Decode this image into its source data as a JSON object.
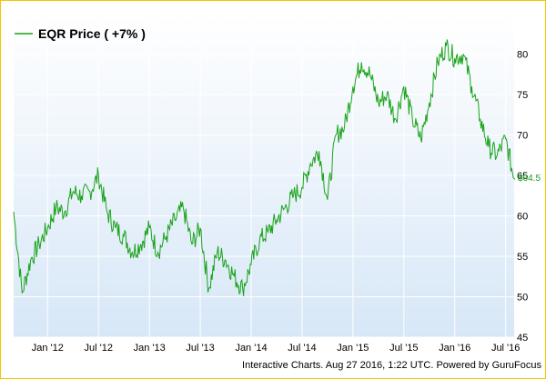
{
  "legend": {
    "label": "EQR Price ( +7% )"
  },
  "current_price_label": "$64.5",
  "footer": {
    "text": "Interactive Charts. Aug 27 2016, 1:22 UTC. Powered by GuruFocus"
  },
  "colors": {
    "line": "#1aa31a",
    "border": "#f2c500",
    "bg_top": "#ffffff",
    "bg_bottom": "#d7e7f7",
    "grid": "#ffffff"
  },
  "chart_data": {
    "type": "line",
    "title": "",
    "xlabel": "",
    "ylabel": "",
    "series": [
      {
        "name": "EQR Price ( +7% )"
      }
    ],
    "x_ticks": [
      "Jan '12",
      "Jul '12",
      "Jan '13",
      "Jul '13",
      "Jan '14",
      "Jul '14",
      "Jan '15",
      "Jul '15",
      "Jan '16",
      "Jul '16"
    ],
    "y_ticks": [
      45,
      50,
      55,
      60,
      65,
      70,
      75,
      80
    ],
    "ylim": [
      45,
      85
    ],
    "xlim": [
      "2011-09",
      "2016-08"
    ],
    "y_axis_side": "right",
    "grid": true,
    "legend_position": "top-left",
    "x": [
      "2011-09",
      "2011-10",
      "2011-11",
      "2011-12",
      "2012-01",
      "2012-02",
      "2012-03",
      "2012-04",
      "2012-05",
      "2012-06",
      "2012-07",
      "2012-08",
      "2012-09",
      "2012-10",
      "2012-11",
      "2012-12",
      "2013-01",
      "2013-02",
      "2013-03",
      "2013-04",
      "2013-05",
      "2013-06",
      "2013-07",
      "2013-08",
      "2013-09",
      "2013-10",
      "2013-11",
      "2013-12",
      "2014-01",
      "2014-02",
      "2014-03",
      "2014-04",
      "2014-05",
      "2014-06",
      "2014-07",
      "2014-08",
      "2014-09",
      "2014-10",
      "2014-11",
      "2014-12",
      "2015-01",
      "2015-02",
      "2015-03",
      "2015-04",
      "2015-05",
      "2015-06",
      "2015-07",
      "2015-08",
      "2015-09",
      "2015-10",
      "2015-11",
      "2015-12",
      "2016-01",
      "2016-02",
      "2016-03",
      "2016-04",
      "2016-05",
      "2016-06",
      "2016-07",
      "2016-08"
    ],
    "values": [
      60.5,
      50.5,
      54.5,
      56.5,
      58.5,
      61,
      60.5,
      63,
      62.5,
      63,
      65,
      60.5,
      58.5,
      57.5,
      55.5,
      56.5,
      58.5,
      55.5,
      57.5,
      59.5,
      61,
      56.5,
      58.5,
      51,
      55.5,
      54.5,
      52.5,
      51,
      54,
      57,
      58,
      59.5,
      61,
      62.5,
      63.5,
      66.5,
      68,
      62,
      70,
      71,
      76,
      79,
      77.5,
      74,
      75,
      72,
      76,
      72,
      69.5,
      74,
      79,
      81,
      79.5,
      80,
      76,
      72,
      68.5,
      67.5,
      69.5,
      64.5
    ]
  }
}
